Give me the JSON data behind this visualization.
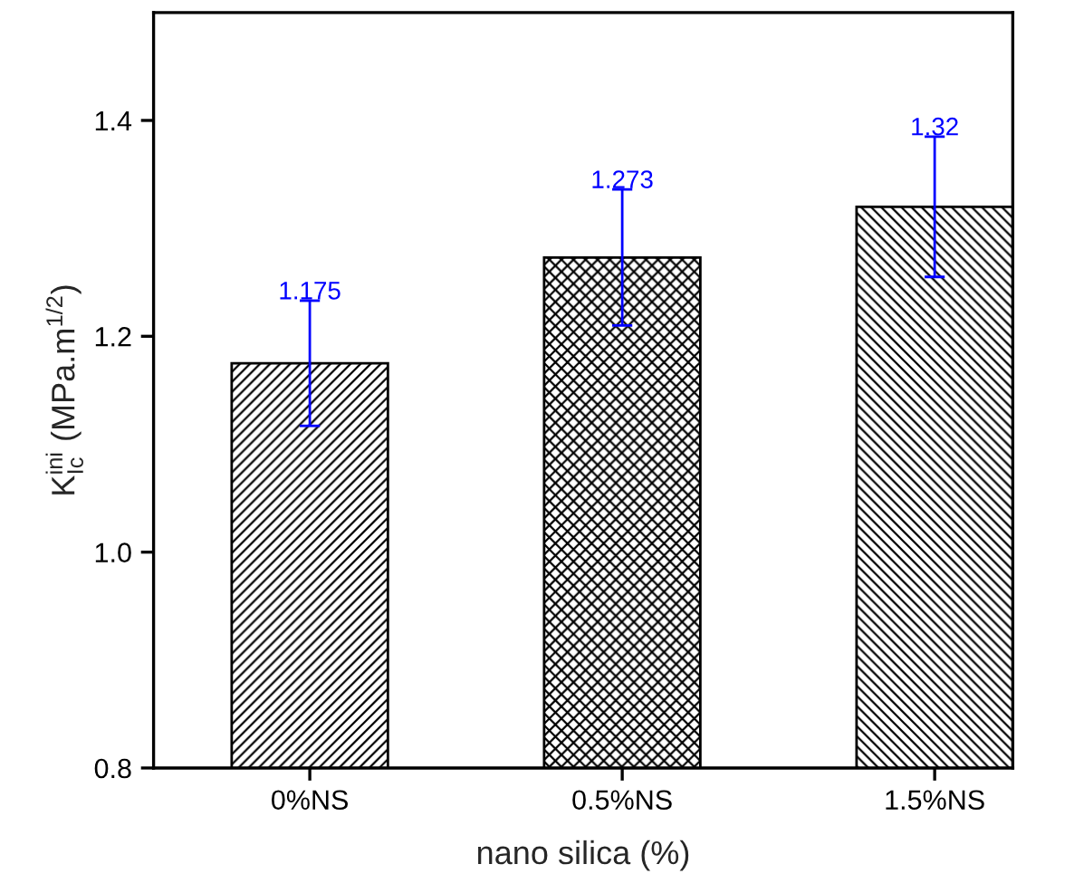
{
  "chart_data": {
    "type": "bar",
    "xlabel": "nano silica (%)",
    "ylabel": "K$^{ini}$$_{Ic}$ (MPa.m$^{1/2}$)",
    "categories": [
      "0%NS",
      "0.5%NS",
      "1.5%NS"
    ],
    "values": [
      1.175,
      1.273,
      1.32
    ],
    "errors": [
      0.058,
      0.063,
      0.065
    ],
    "color": "#000000",
    "ylim": [
      0.8,
      1.5
    ],
    "yticks": [
      0.8,
      {
        "value": 1.0,
        "label": "1.0"
      },
      1.2,
      1.4
    ],
    "data_labels": true,
    "grid": false,
    "legend": false
  }
}
